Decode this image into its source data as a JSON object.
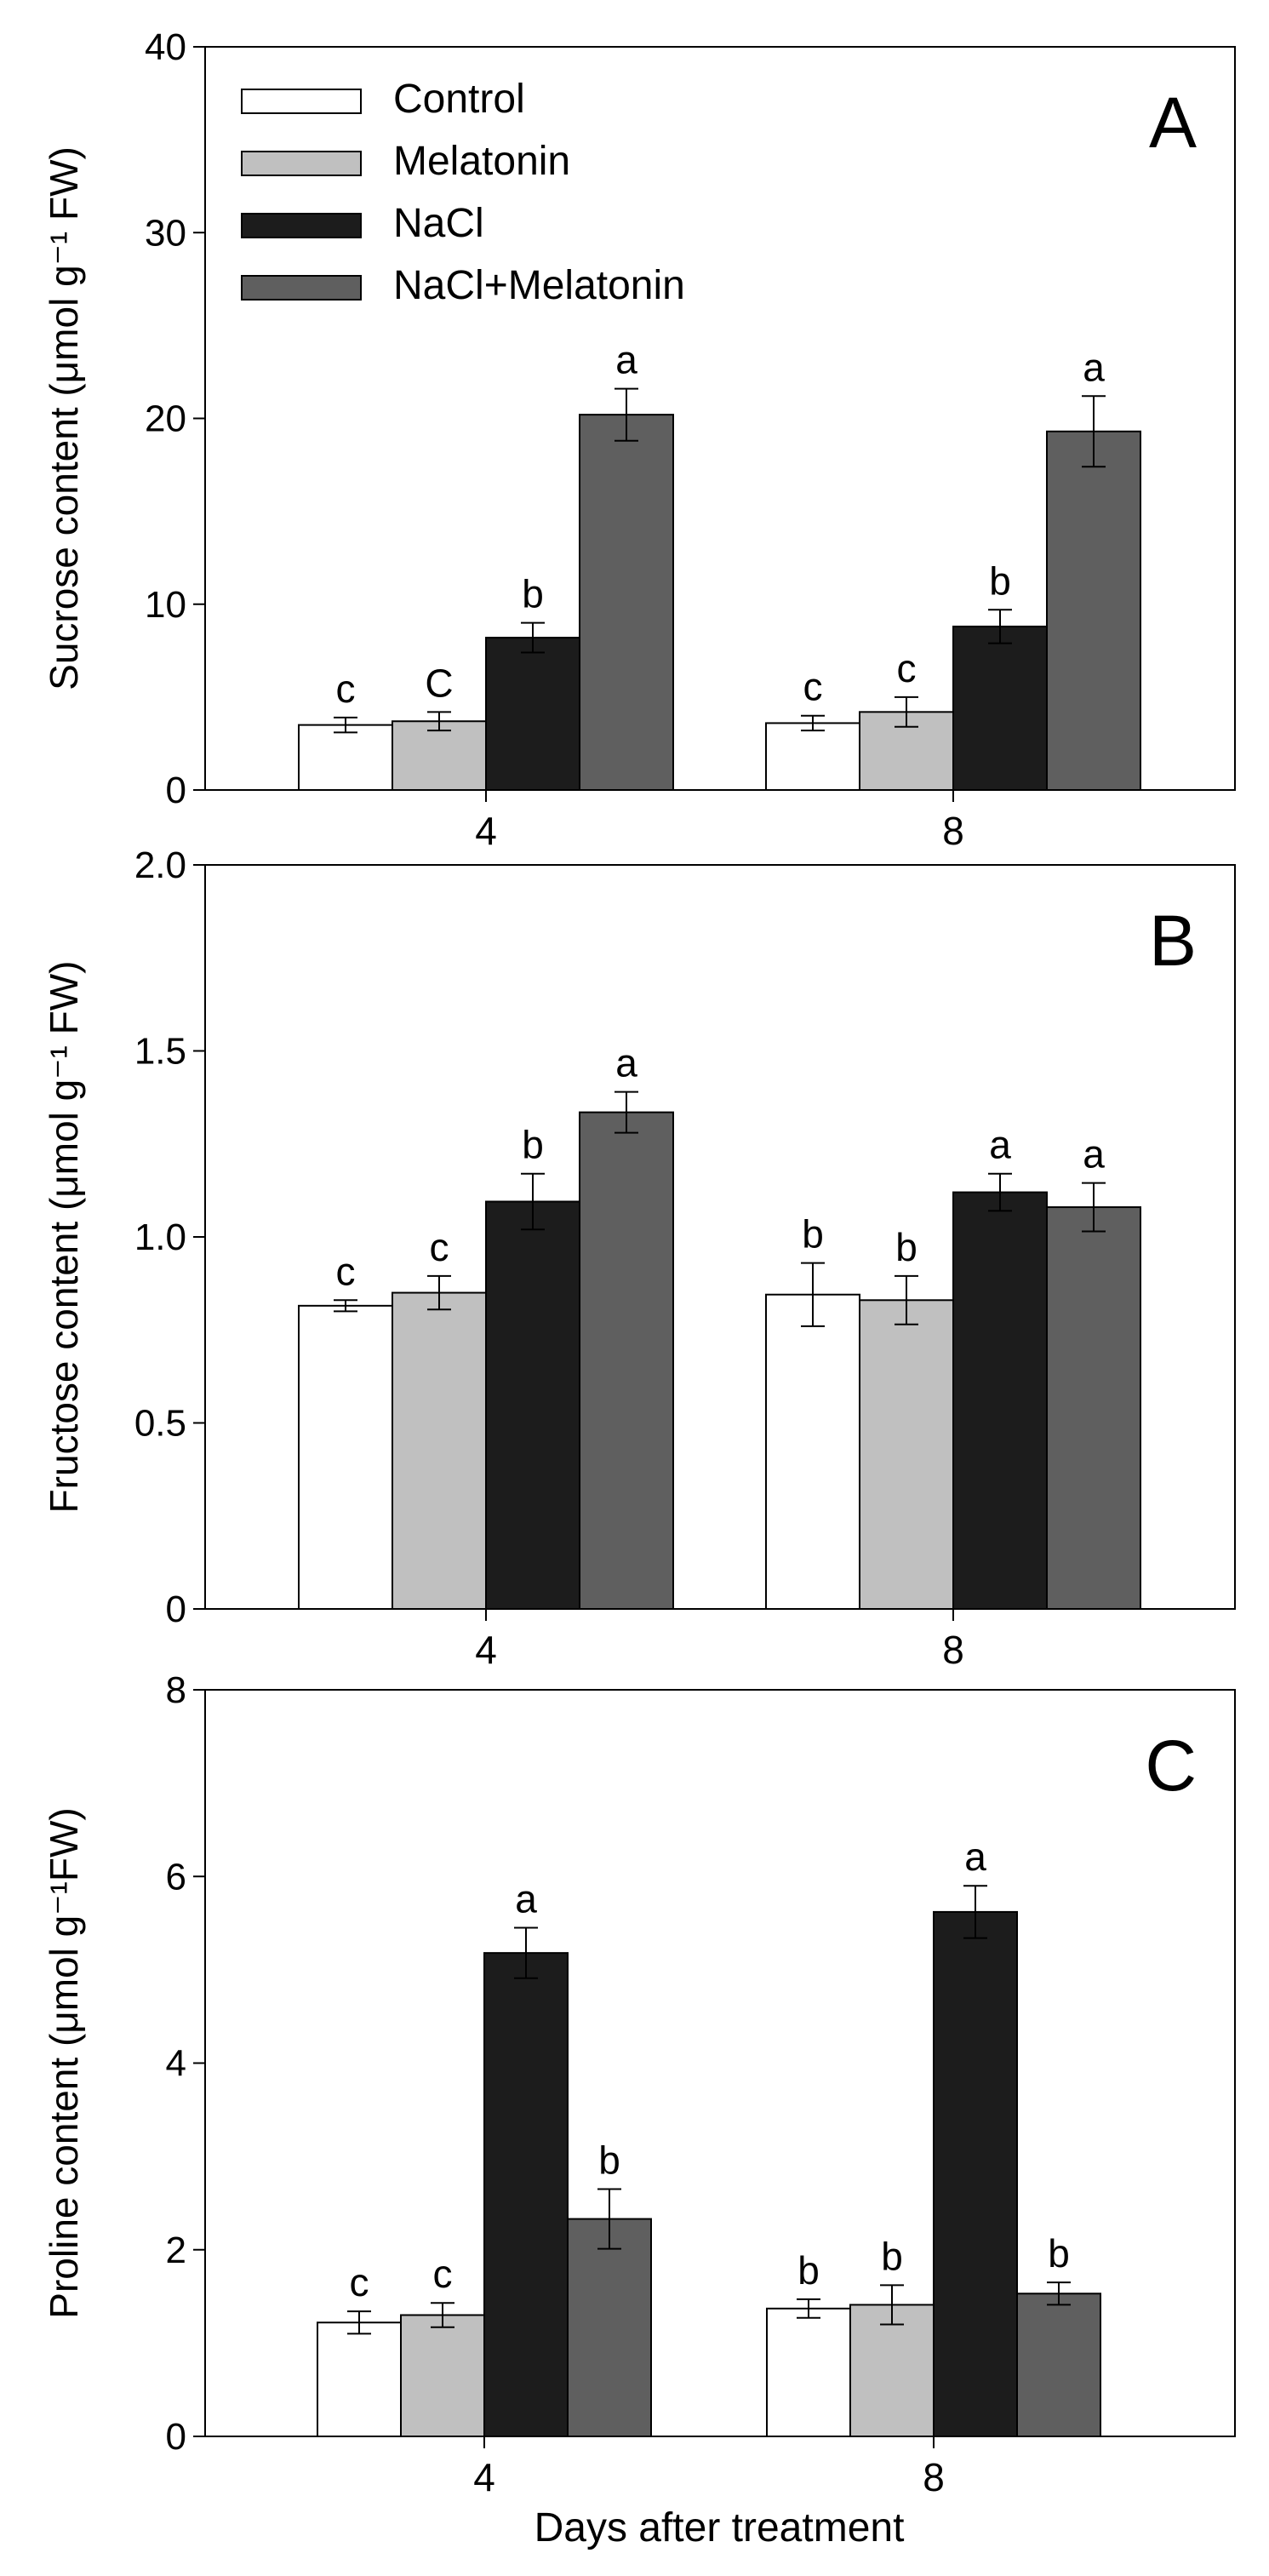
{
  "colors": {
    "Control": "#ffffff",
    "Melatonin": "#c0c0c0",
    "NaCl": "#1c1c1c",
    "NaCl+Melatonin": "#5f5f5f"
  },
  "legend": [
    "Control",
    "Melatonin",
    "NaCl",
    "NaCl+Melatonin"
  ],
  "xlabel": "Days after treatment",
  "chart_data": [
    {
      "type": "bar",
      "panel_label": "A",
      "title": "",
      "categories": [
        "4",
        "8"
      ],
      "ylabel": "Sucrose content (μmol g⁻¹ FW)",
      "ylim": [
        0,
        40
      ],
      "yticks": [
        "0",
        "10",
        "20",
        "30",
        "40"
      ],
      "ytick_values": [
        0,
        10,
        20,
        30,
        40
      ],
      "show_legend": true,
      "series": [
        {
          "name": "Control",
          "values": [
            3.5,
            3.6
          ],
          "errors": [
            0.4,
            0.4
          ],
          "letters": [
            "c",
            "c"
          ]
        },
        {
          "name": "Melatonin",
          "values": [
            3.7,
            4.2
          ],
          "errors": [
            0.5,
            0.8
          ],
          "letters": [
            "C",
            "c"
          ]
        },
        {
          "name": "NaCl",
          "values": [
            8.2,
            8.8
          ],
          "errors": [
            0.8,
            0.9
          ],
          "letters": [
            "b",
            "b"
          ]
        },
        {
          "name": "NaCl+Melatonin",
          "values": [
            20.2,
            19.3
          ],
          "errors": [
            1.4,
            1.9
          ],
          "letters": [
            "a",
            "a"
          ]
        }
      ]
    },
    {
      "type": "bar",
      "panel_label": "B",
      "title": "",
      "categories": [
        "4",
        "8"
      ],
      "ylabel": "Fructose content (μmol g⁻¹ FW)",
      "ylim": [
        0,
        2
      ],
      "yticks": [
        "0",
        "0.5",
        "1.0",
        "1.5",
        "2.0"
      ],
      "ytick_values": [
        0,
        0.5,
        1.0,
        1.5,
        2.0
      ],
      "show_legend": false,
      "series": [
        {
          "name": "Control",
          "values": [
            0.815,
            0.845
          ],
          "errors": [
            0.015,
            0.085
          ],
          "letters": [
            "c",
            "b"
          ]
        },
        {
          "name": "Melatonin",
          "values": [
            0.85,
            0.83
          ],
          "errors": [
            0.045,
            0.065
          ],
          "letters": [
            "c",
            "b"
          ]
        },
        {
          "name": "NaCl",
          "values": [
            1.095,
            1.12
          ],
          "errors": [
            0.075,
            0.05
          ],
          "letters": [
            "b",
            "a"
          ]
        },
        {
          "name": "NaCl+Melatonin",
          "values": [
            1.335,
            1.08
          ],
          "errors": [
            0.055,
            0.065
          ],
          "letters": [
            "a",
            "a"
          ]
        }
      ]
    },
    {
      "type": "bar",
      "panel_label": "C",
      "title": "",
      "categories": [
        "4",
        "8"
      ],
      "ylabel": "Proline content (μmol g⁻¹FW)",
      "ylim": [
        0,
        8
      ],
      "yticks": [
        "0",
        "2",
        "4",
        "6",
        "8"
      ],
      "ytick_values": [
        0,
        2,
        4,
        6,
        8
      ],
      "show_legend": false,
      "series": [
        {
          "name": "Control",
          "values": [
            1.22,
            1.37
          ],
          "errors": [
            0.12,
            0.1
          ],
          "letters": [
            "c",
            "b"
          ]
        },
        {
          "name": "Melatonin",
          "values": [
            1.3,
            1.41
          ],
          "errors": [
            0.13,
            0.21
          ],
          "letters": [
            "c",
            "b"
          ]
        },
        {
          "name": "NaCl",
          "values": [
            5.18,
            5.62
          ],
          "errors": [
            0.27,
            0.28
          ],
          "letters": [
            "a",
            "a"
          ]
        },
        {
          "name": "NaCl+Melatonin",
          "values": [
            2.33,
            1.53
          ],
          "errors": [
            0.32,
            0.12
          ],
          "letters": [
            "b",
            "b"
          ]
        }
      ]
    }
  ]
}
